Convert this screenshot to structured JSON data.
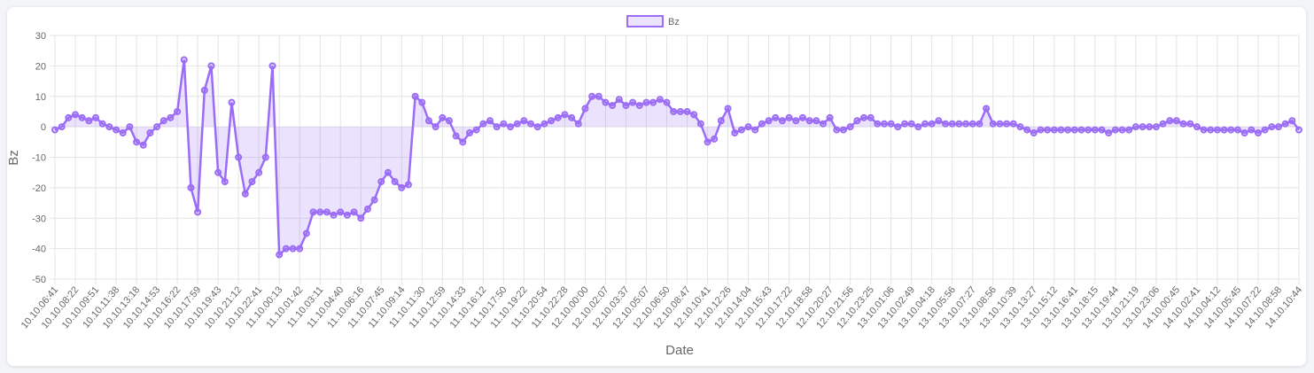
{
  "chart_data": {
    "type": "line",
    "xlabel": "Date",
    "ylabel": "Bz",
    "categories": [
      "10.10.06:41",
      null,
      null,
      "10.10.08:22",
      null,
      null,
      "10.10.09:51",
      null,
      null,
      "10.10.11:38",
      null,
      null,
      "10.10.13:18",
      null,
      null,
      "10.10.14:53",
      null,
      null,
      "10.10.16:22",
      null,
      null,
      "10.10.17:59",
      null,
      null,
      "10.10.19:43",
      null,
      null,
      "10.10.21:12",
      null,
      null,
      "10.10.22:41",
      null,
      null,
      "11.10.00:13",
      null,
      null,
      "11.10.01:42",
      null,
      null,
      "11.10.03:11",
      null,
      null,
      "11.10.04:40",
      null,
      null,
      "11.10.06:16",
      null,
      null,
      "11.10.07:45",
      null,
      null,
      "11.10.09:14",
      null,
      null,
      "11.10.11:30",
      null,
      null,
      "11.10.12:59",
      null,
      null,
      "11.10.14:33",
      null,
      null,
      "11.10.16:12",
      null,
      null,
      "11.10.17:50",
      null,
      null,
      "11.10.19:22",
      null,
      null,
      "11.10.20:54",
      null,
      null,
      "11.10.22:28",
      null,
      null,
      "12.10.00:00",
      null,
      null,
      "12.10.02:07",
      null,
      null,
      "12.10.03:37",
      null,
      null,
      "12.10.05:07",
      null,
      null,
      "12.10.06:50",
      null,
      null,
      "12.10.08:47",
      null,
      null,
      "12.10.10:41",
      null,
      null,
      "12.10.12:26",
      null,
      null,
      "12.10.14:04",
      null,
      null,
      "12.10.15:43",
      null,
      null,
      "12.10.17:22",
      null,
      null,
      "12.10.18:58",
      null,
      null,
      "12.10.20:27",
      null,
      null,
      "12.10.21:56",
      null,
      null,
      "12.10.23:25",
      null,
      null,
      "13.10.01:06",
      null,
      null,
      "13.10.02:49",
      null,
      null,
      "13.10.04:18",
      null,
      null,
      "13.10.05:56",
      null,
      null,
      "13.10.07:27",
      null,
      null,
      "13.10.08:56",
      null,
      null,
      "13.10.10:39",
      null,
      null,
      "13.10.13:27",
      null,
      null,
      "13.10.15:12",
      null,
      null,
      "13.10.16:41",
      null,
      null,
      "13.10.18:15",
      null,
      null,
      "13.10.19:44",
      null,
      null,
      "13.10.21:19",
      null,
      null,
      "13.10.23:06",
      null,
      null,
      "14.10.00:45",
      null,
      null,
      "14.10.02:41",
      null,
      null,
      "14.10.04:12",
      null,
      null,
      "14.10.05:45",
      null,
      null,
      "14.10.07:22",
      null,
      null,
      "14.10.08:58",
      null,
      null,
      "14.10.10:44"
    ],
    "series": [
      {
        "name": "Bz",
        "color": "#9b6cf5",
        "fill": "rgba(155,108,245,0.2)",
        "values": [
          -1,
          0,
          3,
          4,
          3,
          2,
          3,
          1,
          0,
          -1,
          -2,
          0,
          -5,
          -6,
          -2,
          0,
          2,
          3,
          5,
          22,
          -20,
          -28,
          12,
          20,
          -15,
          -18,
          8,
          -10,
          -22,
          -18,
          -15,
          -10,
          20,
          -42,
          -40,
          -40,
          -40,
          -35,
          -28,
          -28,
          -28,
          -29,
          -28,
          -29,
          -28,
          -30,
          -27,
          -24,
          -18,
          -15,
          -18,
          -20,
          -19,
          10,
          8,
          2,
          0,
          3,
          2,
          -3,
          -5,
          -2,
          -1,
          1,
          2,
          0,
          1,
          0,
          1,
          2,
          1,
          0,
          1,
          2,
          3,
          4,
          3,
          1,
          6,
          10,
          10,
          8,
          7,
          9,
          7,
          8,
          7,
          8,
          8,
          9,
          8,
          5,
          5,
          5,
          4,
          1,
          -5,
          -4,
          2,
          6,
          -2,
          -1,
          0,
          -1,
          1,
          2,
          3,
          2,
          3,
          2,
          3,
          2,
          2,
          1,
          3,
          -1,
          -1,
          0,
          2,
          3,
          3,
          1,
          1,
          1,
          0,
          1,
          1,
          0,
          1,
          1,
          2,
          1,
          1,
          1,
          1,
          1,
          1,
          6,
          1,
          1,
          1,
          1,
          0,
          -1,
          -2,
          -1,
          -1,
          -1,
          -1,
          -1,
          -1,
          -1,
          -1,
          -1,
          -1,
          -2,
          -1,
          -1,
          -1,
          0,
          0,
          0,
          0,
          1,
          2,
          2,
          1,
          1,
          0,
          -1,
          -1,
          -1,
          -1,
          -1,
          -1,
          -2,
          -1,
          -2,
          -1,
          0,
          0,
          1,
          2,
          -1
        ]
      }
    ],
    "ylim": [
      -50,
      30
    ],
    "yticks": [
      -50,
      -40,
      -30,
      -20,
      -10,
      0,
      10,
      20,
      30
    ],
    "grid": true,
    "legend": "top"
  }
}
